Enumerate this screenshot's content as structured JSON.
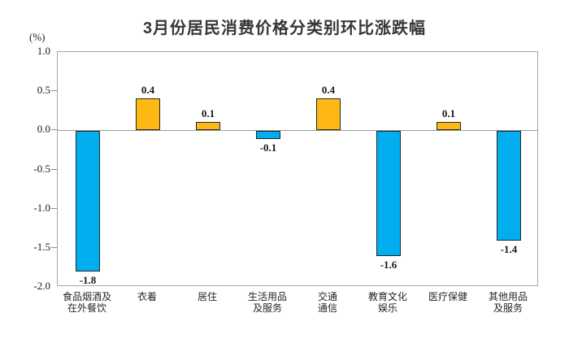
{
  "title": "3月份居民消费价格分类别环比涨跌幅",
  "unit_label": "(%)",
  "colors": {
    "positive_bar": "#FDB813",
    "negative_bar": "#00AEEF",
    "bar_border": "#262626",
    "plot_border": "#A6A6A6",
    "zero_line": "#999999",
    "text": "#1A1A1A"
  },
  "chart_data": {
    "type": "bar",
    "title": "3月份居民消费价格分类别环比涨跌幅",
    "xlabel": "",
    "ylabel": "(%)",
    "ylim": [
      -2.0,
      1.0
    ],
    "yticks": [
      1.0,
      0.5,
      0.0,
      -0.5,
      -1.0,
      -1.5,
      -2.0
    ],
    "ytick_labels": [
      "1.0",
      "0.5",
      "0.0",
      "-0.5",
      "-1.0",
      "-1.5",
      "-2.0"
    ],
    "grid": false,
    "legend": "none",
    "categories": [
      "食品烟酒及\n在外餐饮",
      "衣着",
      "居住",
      "生活用品\n及服务",
      "交通\n通信",
      "教育文化\n娱乐",
      "医疗保健",
      "其他用品\n及服务"
    ],
    "values": [
      -1.8,
      0.4,
      0.1,
      -0.1,
      0.4,
      -1.6,
      0.1,
      -1.4
    ],
    "value_labels": [
      "-1.8",
      "0.4",
      "0.1",
      "-0.1",
      "0.4",
      "-1.6",
      "0.1",
      "-1.4"
    ]
  }
}
